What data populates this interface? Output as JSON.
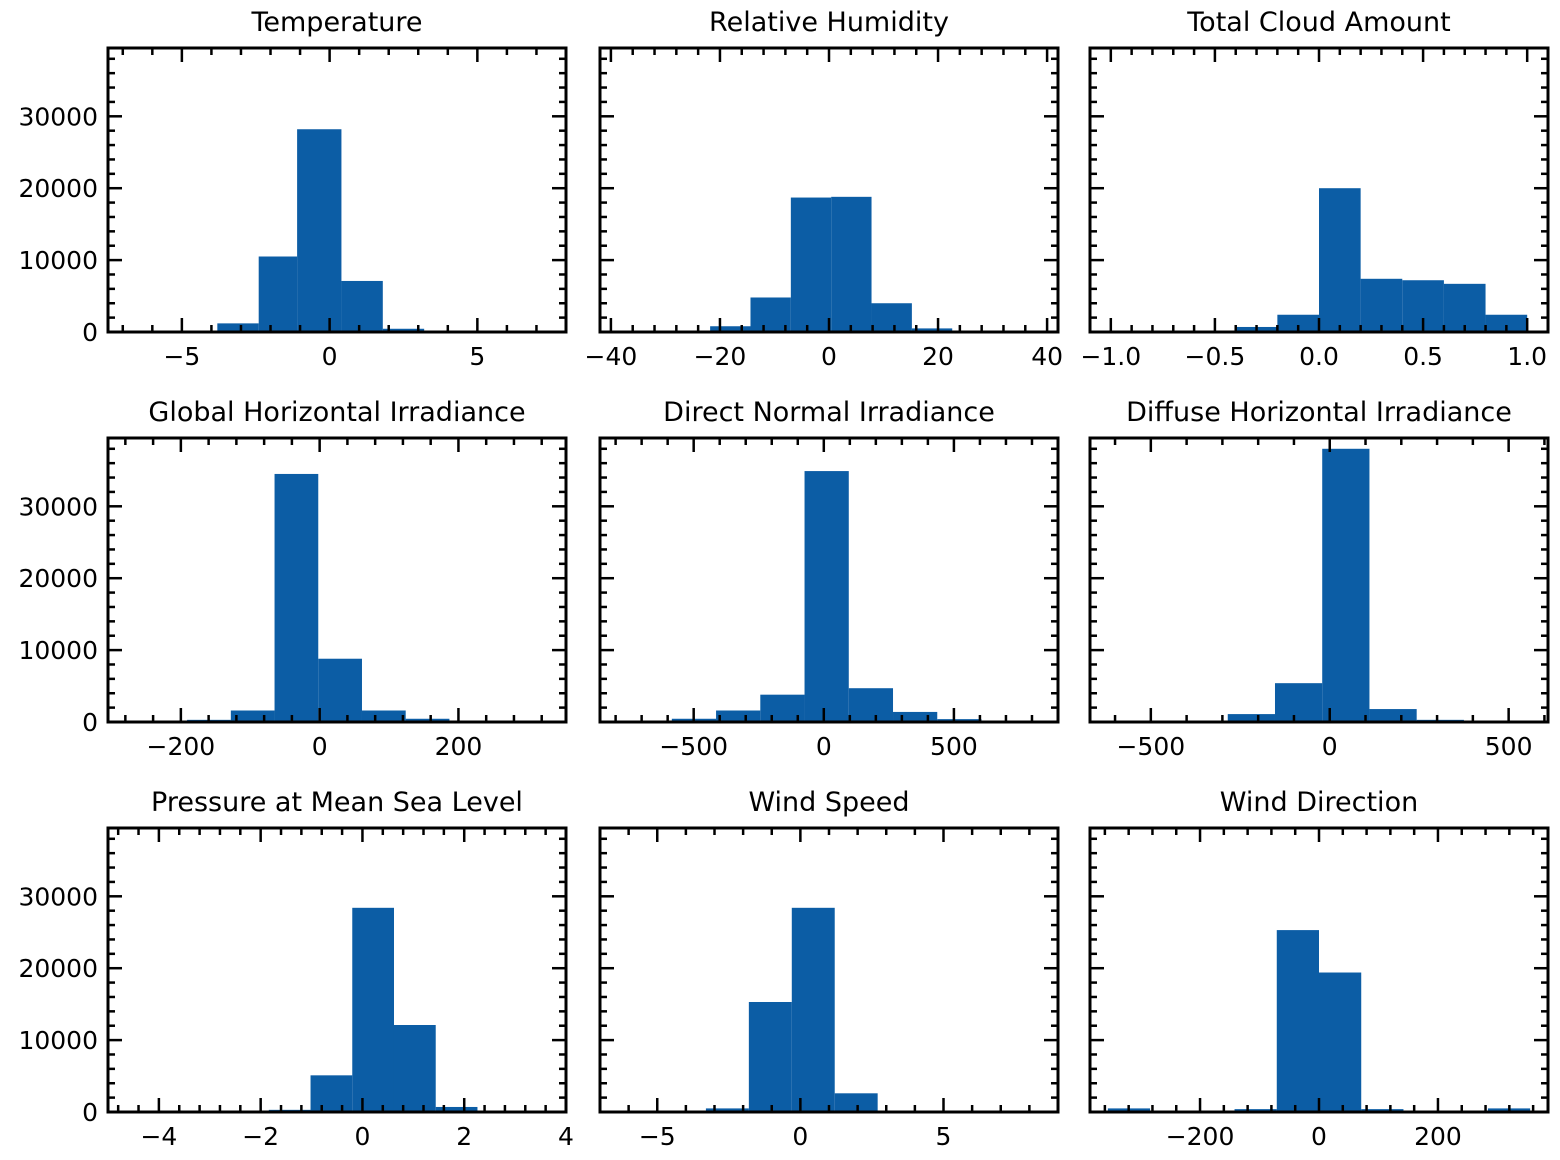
{
  "style": {
    "bar_color": "#0c5da5",
    "background": "#ffffff",
    "frame_color": "#000000"
  },
  "chart_data": [
    {
      "type": "bar",
      "title": "Temperature",
      "xlim": [
        -7.5,
        8
      ],
      "ylim": [
        0,
        39500
      ],
      "xticks": [
        -5,
        0,
        5
      ],
      "xtick_labels": [
        "−5",
        "0",
        "5"
      ],
      "yticks": [
        0,
        10000,
        20000,
        30000
      ],
      "ytick_labels": [
        "0",
        "10000",
        "20000",
        "30000"
      ],
      "bin_edges": [
        -6.1,
        -5.1,
        -3.8,
        -2.4,
        -1.1,
        0.4,
        1.8,
        3.2,
        4.6,
        6.0,
        7.4
      ],
      "counts": [
        0,
        50,
        1200,
        10500,
        28200,
        7100,
        450,
        50,
        0,
        0
      ]
    },
    {
      "type": "bar",
      "title": "Relative Humidity",
      "xlim": [
        -42,
        42
      ],
      "ylim": [
        0,
        39500
      ],
      "xticks": [
        -40,
        -20,
        0,
        20,
        40
      ],
      "xtick_labels": [
        "−40",
        "−20",
        "0",
        "20",
        "40"
      ],
      "yticks": [
        0,
        10000,
        20000,
        30000
      ],
      "ytick_labels": [],
      "bin_edges": [
        -36.6,
        -29.2,
        -21.8,
        -14.4,
        -7.0,
        0.4,
        7.8,
        15.2,
        22.6,
        30.0,
        37.4
      ],
      "counts": [
        0,
        50,
        800,
        4800,
        18700,
        18800,
        4000,
        500,
        50,
        0
      ]
    },
    {
      "type": "bar",
      "title": "Total Cloud Amount",
      "xlim": [
        -1.1,
        1.1
      ],
      "ylim": [
        0,
        39500
      ],
      "xticks": [
        -1.0,
        -0.5,
        0.0,
        0.5,
        1.0
      ],
      "xtick_labels": [
        "−1.0",
        "−0.5",
        "0.0",
        "0.5",
        "1.0"
      ],
      "yticks": [
        0,
        10000,
        20000,
        30000
      ],
      "ytick_labels": [],
      "bin_edges": [
        -1.0,
        -0.8,
        -0.6,
        -0.4,
        -0.2,
        0.0,
        0.2,
        0.4,
        0.6,
        0.8,
        1.0
      ],
      "counts": [
        0,
        0,
        150,
        700,
        2400,
        20000,
        7400,
        7200,
        6700,
        2400
      ]
    },
    {
      "type": "bar",
      "title": "Global Horizontal Irradiance",
      "xlim": [
        -305,
        355
      ],
      "ylim": [
        0,
        39500
      ],
      "xticks": [
        -200,
        0,
        200
      ],
      "xtick_labels": [
        "−200",
        "0",
        "200"
      ],
      "yticks": [
        0,
        10000,
        20000,
        30000
      ],
      "ytick_labels": [
        "0",
        "10000",
        "20000",
        "30000"
      ],
      "bin_edges": [
        -254,
        -191,
        -128,
        -65,
        -2,
        61,
        124,
        187,
        250,
        313
      ],
      "counts": [
        50,
        300,
        1600,
        34500,
        8800,
        1600,
        450,
        50,
        0
      ]
    },
    {
      "type": "bar",
      "title": "Direct Normal Irradiance",
      "xlim": [
        -860,
        900
      ],
      "ylim": [
        0,
        39500
      ],
      "xticks": [
        -500,
        0,
        500
      ],
      "xtick_labels": [
        "−500",
        "0",
        "500"
      ],
      "yticks": [
        0,
        10000,
        20000,
        30000
      ],
      "ytick_labels": [],
      "bin_edges": [
        -754,
        -584,
        -414,
        -244,
        -74,
        96,
        266,
        436,
        606,
        776
      ],
      "counts": [
        50,
        450,
        1600,
        3800,
        34900,
        4700,
        1400,
        400,
        50
      ]
    },
    {
      "type": "bar",
      "title": "Diffuse Horizontal Irradiance",
      "xlim": [
        -670,
        610
      ],
      "ylim": [
        0,
        39500
      ],
      "xticks": [
        -500,
        0,
        500
      ],
      "xtick_labels": [
        "−500",
        "0",
        "500"
      ],
      "yticks": [
        0,
        10000,
        20000,
        30000
      ],
      "ytick_labels": [
        "",
        "",
        "",
        ""
      ],
      "bin_edges": [
        -549,
        -417,
        -285,
        -153,
        -21,
        111,
        243,
        375,
        507
      ],
      "counts": [
        50,
        150,
        1100,
        5400,
        38000,
        1800,
        300,
        50
      ]
    },
    {
      "type": "bar",
      "title": "Pressure at Mean Sea Level",
      "xlim": [
        -5,
        4
      ],
      "ylim": [
        0,
        39500
      ],
      "xticks": [
        -4,
        -2,
        0,
        2,
        4
      ],
      "xtick_labels": [
        "−4",
        "−2",
        "0",
        "2",
        "4"
      ],
      "yticks": [
        0,
        10000,
        20000,
        30000
      ],
      "ytick_labels": [
        "0",
        "10000",
        "20000",
        "30000"
      ],
      "bin_edges": [
        -4.3,
        -3.48,
        -2.66,
        -1.84,
        -1.02,
        -0.2,
        0.62,
        1.44,
        2.26,
        3.08,
        3.9
      ],
      "counts": [
        0,
        0,
        0,
        300,
        5100,
        28400,
        12100,
        700,
        50,
        0
      ]
    },
    {
      "type": "bar",
      "title": "Wind Speed",
      "xlim": [
        -7,
        9
      ],
      "ylim": [
        0,
        39500
      ],
      "xticks": [
        -5,
        0,
        5
      ],
      "xtick_labels": [
        "−5",
        "0",
        "5"
      ],
      "yticks": [
        0,
        10000,
        20000,
        30000
      ],
      "ytick_labels": [],
      "bin_edges": [
        -4.8,
        -3.3,
        -1.8,
        -0.3,
        1.2,
        2.7,
        4.2,
        5.7,
        7.2
      ],
      "counts": [
        0,
        500,
        15300,
        28400,
        2600,
        50,
        0,
        0
      ]
    },
    {
      "type": "bar",
      "title": "Wind Direction",
      "xlim": [
        -385,
        385
      ],
      "ylim": [
        0,
        39500
      ],
      "xticks": [
        -200,
        0,
        200
      ],
      "xtick_labels": [
        "−200",
        "0",
        "200"
      ],
      "yticks": [
        0,
        10000,
        20000,
        30000
      ],
      "ytick_labels": [],
      "bin_edges": [
        -355,
        -284,
        -213,
        -142,
        -71,
        0,
        71,
        142,
        213,
        284,
        355
      ],
      "counts": [
        500,
        0,
        0,
        400,
        25300,
        19400,
        400,
        0,
        0,
        500
      ]
    }
  ]
}
